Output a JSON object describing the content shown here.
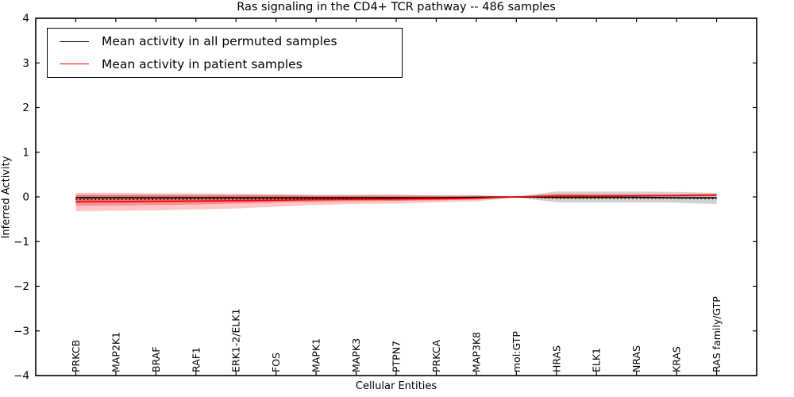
{
  "figure": {
    "title": "Ras signaling in the CD4+ TCR pathway -- 486 samples"
  },
  "chart_data": {
    "type": "line",
    "title": "Ras signaling in the CD4+ TCR pathway -- 486 samples",
    "xlabel": "Cellular Entities",
    "ylabel": "Inferred Activity",
    "ylim": [
      -4,
      4
    ],
    "yticks": [
      -4,
      -3,
      -2,
      -1,
      0,
      1,
      2,
      3,
      4
    ],
    "grid": false,
    "categories": [
      "PRKCB",
      "MAP2K1",
      "BRAF",
      "RAF1",
      "ERK1-2/ELK1",
      "FOS",
      "MAPK1",
      "MAPK3",
      "PTPN7",
      "PRKCA",
      "MAP3K8",
      "mol:GTP",
      "HRAS",
      "ELK1",
      "NRAS",
      "KRAS",
      "RAS family/GTP"
    ],
    "series": [
      {
        "name": "Mean activity in all permuted samples",
        "color": "#000000",
        "style": "solid",
        "values": [
          -0.02,
          -0.02,
          -0.02,
          -0.02,
          -0.02,
          -0.02,
          -0.02,
          -0.02,
          -0.02,
          -0.02,
          -0.01,
          0.0,
          -0.01,
          -0.01,
          -0.01,
          -0.02,
          -0.02
        ]
      },
      {
        "name": "permuted-mean-dotted-trace",
        "color": "#000000",
        "style": "dotted",
        "values": [
          -0.06,
          -0.06,
          -0.055,
          -0.05,
          -0.05,
          -0.045,
          -0.04,
          -0.04,
          -0.035,
          -0.03,
          -0.02,
          0.0,
          -0.03,
          -0.03,
          -0.03,
          -0.03,
          -0.04
        ]
      },
      {
        "name": "Mean activity in patient samples",
        "color": "#ff0000",
        "style": "solid",
        "values": [
          -0.11,
          -0.105,
          -0.1,
          -0.095,
          -0.085,
          -0.075,
          -0.06,
          -0.055,
          -0.05,
          -0.04,
          -0.03,
          0.0,
          0.02,
          0.02,
          0.025,
          0.03,
          0.04
        ]
      }
    ],
    "bands": [
      {
        "name": "permuted-samples-std-band",
        "color": "#999999",
        "opacity": 0.45,
        "upper": [
          0.05,
          0.05,
          0.05,
          0.05,
          0.05,
          0.05,
          0.04,
          0.04,
          0.04,
          0.03,
          0.03,
          0.01,
          0.12,
          0.12,
          0.12,
          0.11,
          0.09
        ],
        "lower": [
          -0.12,
          -0.12,
          -0.12,
          -0.11,
          -0.11,
          -0.1,
          -0.09,
          -0.08,
          -0.08,
          -0.07,
          -0.05,
          -0.01,
          -0.12,
          -0.12,
          -0.12,
          -0.13,
          -0.16
        ]
      },
      {
        "name": "patient-samples-std-outer-band",
        "color": "#ff0000",
        "opacity": 0.22,
        "upper": [
          0.09,
          0.09,
          0.08,
          0.08,
          0.07,
          0.06,
          0.05,
          0.05,
          0.05,
          0.04,
          0.04,
          0.01,
          0.07,
          0.06,
          0.06,
          0.06,
          0.07
        ],
        "lower": [
          -0.32,
          -0.31,
          -0.3,
          -0.28,
          -0.26,
          -0.22,
          -0.18,
          -0.16,
          -0.15,
          -0.12,
          -0.1,
          -0.01,
          -0.02,
          -0.01,
          -0.01,
          0.0,
          0.01
        ]
      },
      {
        "name": "patient-samples-std-inner-band",
        "color": "#ff0000",
        "opacity": 0.28,
        "upper": [
          0.04,
          0.04,
          0.04,
          0.03,
          0.03,
          0.03,
          0.02,
          0.02,
          0.02,
          0.02,
          0.02,
          0.005,
          0.06,
          0.05,
          0.05,
          0.05,
          0.06
        ],
        "lower": [
          -0.2,
          -0.19,
          -0.18,
          -0.17,
          -0.15,
          -0.13,
          -0.11,
          -0.1,
          -0.09,
          -0.08,
          -0.06,
          -0.005,
          0.0,
          0.0,
          0.01,
          0.01,
          0.02
        ]
      }
    ],
    "legend": {
      "position": "upper-left",
      "entries": [
        {
          "label": "Mean activity in all permuted samples",
          "color": "#000000"
        },
        {
          "label": "Mean activity in patient samples",
          "color": "#ff0000"
        }
      ]
    }
  }
}
